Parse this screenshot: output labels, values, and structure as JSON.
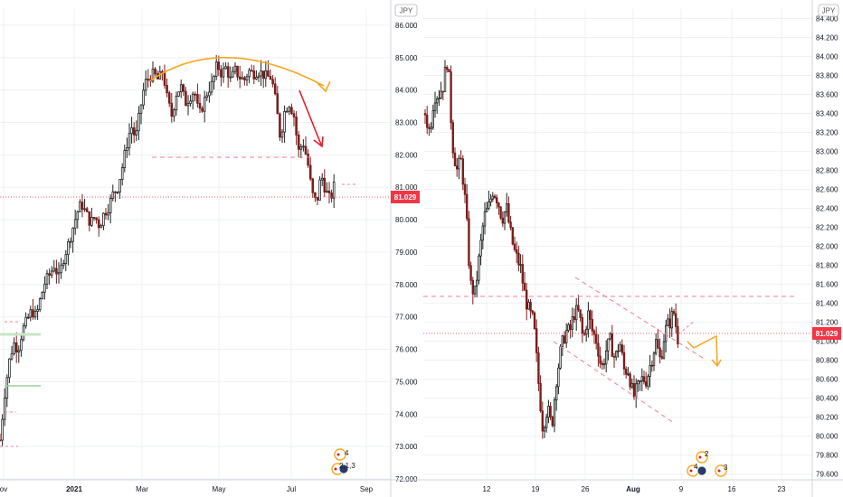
{
  "chart_data": [
    {
      "type": "candlestick",
      "panel": "left",
      "currency_label": "JPY",
      "last_price": "81.029",
      "y_ticks": [
        "86.000",
        "85.000",
        "84.000",
        "83.000",
        "82.000",
        "81.000",
        "80.000",
        "79.000",
        "78.000",
        "77.000",
        "76.000",
        "75.000",
        "74.000",
        "73.000",
        "72.000"
      ],
      "ylim": [
        72.0,
        86.5
      ],
      "x_ticks": [
        {
          "label": "ov",
          "bold": false
        },
        {
          "label": "2021",
          "bold": true
        },
        {
          "label": "Mar",
          "bold": false
        },
        {
          "label": "May",
          "bold": false
        },
        {
          "label": "Jul",
          "bold": false
        },
        {
          "label": "Sep",
          "bold": false
        }
      ],
      "price_path": [
        [
          0,
          73.2
        ],
        [
          5,
          74.6
        ],
        [
          10,
          75.6
        ],
        [
          15,
          76.2
        ],
        [
          20,
          76.0
        ],
        [
          25,
          76.6
        ],
        [
          30,
          76.9
        ],
        [
          35,
          77.2
        ],
        [
          40,
          77.0
        ],
        [
          45,
          77.6
        ],
        [
          50,
          78.1
        ],
        [
          55,
          78.3
        ],
        [
          60,
          78.6
        ],
        [
          65,
          78.2
        ],
        [
          70,
          78.8
        ],
        [
          75,
          79.2
        ],
        [
          80,
          79.7
        ],
        [
          85,
          80.2
        ],
        [
          90,
          80.5
        ],
        [
          95,
          80.2
        ],
        [
          100,
          79.9
        ],
        [
          105,
          80.1
        ],
        [
          110,
          79.8
        ],
        [
          115,
          80.2
        ],
        [
          120,
          80.4
        ],
        [
          125,
          80.8
        ],
        [
          130,
          81.0
        ],
        [
          135,
          81.6
        ],
        [
          140,
          82.3
        ],
        [
          145,
          82.9
        ],
        [
          150,
          82.5
        ],
        [
          155,
          83.4
        ],
        [
          160,
          84.2
        ],
        [
          165,
          84.4
        ],
        [
          170,
          84.5
        ],
        [
          175,
          84.3
        ],
        [
          180,
          84.6
        ],
        [
          185,
          83.7
        ],
        [
          190,
          83.2
        ],
        [
          195,
          83.9
        ],
        [
          200,
          84.1
        ],
        [
          205,
          83.6
        ],
        [
          210,
          83.8
        ],
        [
          215,
          84.0
        ],
        [
          220,
          83.2
        ],
        [
          225,
          83.6
        ],
        [
          230,
          84.0
        ],
        [
          235,
          84.2
        ],
        [
          240,
          84.8
        ],
        [
          245,
          84.5
        ],
        [
          250,
          84.7
        ],
        [
          255,
          84.3
        ],
        [
          260,
          84.6
        ],
        [
          265,
          84.4
        ],
        [
          270,
          84.3
        ],
        [
          275,
          84.6
        ],
        [
          280,
          84.5
        ],
        [
          285,
          84.6
        ],
        [
          290,
          84.5
        ],
        [
          295,
          84.4
        ],
        [
          300,
          84.4
        ],
        [
          305,
          83.6
        ],
        [
          310,
          82.5
        ],
        [
          315,
          83.4
        ],
        [
          320,
          83.6
        ],
        [
          325,
          83.2
        ],
        [
          330,
          82.1
        ],
        [
          335,
          82.4
        ],
        [
          340,
          81.8
        ],
        [
          345,
          80.8
        ],
        [
          350,
          80.5
        ],
        [
          355,
          81.4
        ],
        [
          360,
          80.9
        ],
        [
          365,
          80.6
        ],
        [
          370,
          81.1
        ]
      ]
    },
    {
      "type": "candlestick",
      "panel": "right",
      "currency_label": "JPY",
      "last_price": "81.029",
      "y_ticks": [
        "84.400",
        "84.200",
        "84.000",
        "83.800",
        "83.600",
        "83.400",
        "83.200",
        "83.000",
        "82.800",
        "82.600",
        "82.400",
        "82.200",
        "82.000",
        "81.800",
        "81.600",
        "81.400",
        "81.200",
        "81.000",
        "80.800",
        "80.600",
        "80.400",
        "80.200",
        "80.000",
        "79.800",
        "79.600"
      ],
      "ylim": [
        79.55,
        84.5
      ],
      "x_ticks": [
        {
          "label": "12",
          "bold": false
        },
        {
          "label": "19",
          "bold": false
        },
        {
          "label": "26",
          "bold": false
        },
        {
          "label": "Aug",
          "bold": true
        },
        {
          "label": "9",
          "bold": false
        },
        {
          "label": "16",
          "bold": false
        },
        {
          "label": "23",
          "bold": false
        }
      ],
      "price_path": [
        [
          470,
          83.4
        ],
        [
          475,
          83.2
        ],
        [
          480,
          83.6
        ],
        [
          485,
          83.6
        ],
        [
          490,
          83.7
        ],
        [
          495,
          84.0
        ],
        [
          500,
          83.1
        ],
        [
          505,
          82.8
        ],
        [
          510,
          82.9
        ],
        [
          515,
          82.4
        ],
        [
          520,
          81.6
        ],
        [
          525,
          81.5
        ],
        [
          530,
          81.9
        ],
        [
          535,
          82.3
        ],
        [
          540,
          82.4
        ],
        [
          545,
          82.6
        ],
        [
          550,
          82.5
        ],
        [
          555,
          82.3
        ],
        [
          560,
          82.4
        ],
        [
          565,
          82.1
        ],
        [
          570,
          81.9
        ],
        [
          575,
          81.8
        ],
        [
          580,
          81.5
        ],
        [
          585,
          81.3
        ],
        [
          590,
          81.2
        ],
        [
          595,
          80.6
        ],
        [
          600,
          80.1
        ],
        [
          605,
          80.3
        ],
        [
          610,
          80.1
        ],
        [
          615,
          80.6
        ],
        [
          620,
          80.9
        ],
        [
          625,
          81.1
        ],
        [
          630,
          81.1
        ],
        [
          635,
          81.3
        ],
        [
          640,
          81.3
        ],
        [
          645,
          81.0
        ],
        [
          650,
          81.3
        ],
        [
          655,
          81.1
        ],
        [
          660,
          81.0
        ],
        [
          665,
          80.7
        ],
        [
          670,
          80.9
        ],
        [
          675,
          81.0
        ],
        [
          680,
          80.8
        ],
        [
          685,
          81.0
        ],
        [
          690,
          80.7
        ],
        [
          695,
          80.7
        ],
        [
          700,
          80.4
        ],
        [
          705,
          80.5
        ],
        [
          710,
          80.6
        ],
        [
          715,
          80.6
        ],
        [
          720,
          80.8
        ],
        [
          725,
          81.0
        ],
        [
          730,
          80.8
        ],
        [
          735,
          81.1
        ],
        [
          740,
          81.2
        ],
        [
          745,
          81.3
        ],
        [
          750,
          81.0
        ]
      ]
    }
  ],
  "colors": {
    "up": "#1f2421",
    "down": "#7a1f1f",
    "accent_orange": "#f5a623",
    "arrow_red": "#e0202d",
    "dashed_pink": "#f08090",
    "price_badge": "#f23645",
    "grid": "#eef0f3"
  },
  "icons": {
    "left_event_badges": {
      "top": "4",
      "bottom": "2,1,3"
    },
    "right_event_badges": {
      "top": "2",
      "bottom": "4",
      "extra": "3"
    }
  }
}
